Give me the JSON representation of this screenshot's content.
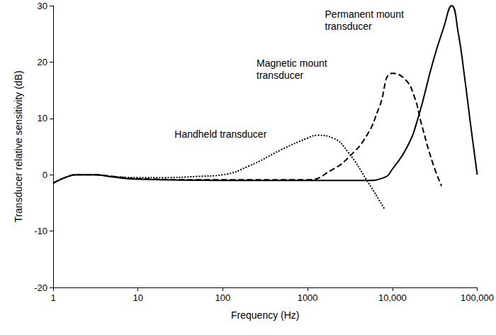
{
  "chart_data": {
    "type": "line",
    "x_label": "Frequency (Hz)",
    "y_label": "Transducer relative sensitivity (dB)",
    "log": "x",
    "grid": false,
    "xlim": [
      1,
      100000
    ],
    "xticks": [
      1,
      10,
      100,
      1000,
      {
        "value": 10000,
        "label": "10,000"
      },
      {
        "value": 100000,
        "label": "100,000"
      }
    ],
    "ylim": [
      -20,
      30
    ],
    "yticks": [
      -20,
      -10,
      0,
      10,
      20,
      30
    ],
    "series": [
      {
        "color": "#000000",
        "line_style": "dotted",
        "x": [
          1,
          1.5,
          2,
          3,
          5,
          10,
          20,
          50,
          100,
          200,
          500,
          1000,
          1300,
          2000,
          3000,
          5000,
          8000
        ],
        "values": [
          -1.5,
          -0.3,
          0,
          0,
          -0.3,
          -0.5,
          -0.5,
          -0.3,
          0,
          1.5,
          4.5,
          6.5,
          7,
          6.5,
          4,
          -1,
          -6
        ]
      },
      {
        "color": "#000000",
        "line_style": "dashed",
        "x": [
          1,
          1.5,
          2,
          3,
          5,
          10,
          100,
          1000,
          2000,
          3000,
          5000,
          7000,
          10000,
          14000,
          18000,
          22000,
          30000,
          38000
        ],
        "values": [
          -1.5,
          -0.3,
          0,
          0,
          -0.3,
          -0.7,
          -0.9,
          -0.9,
          1,
          3,
          7,
          12,
          18,
          17,
          14,
          9,
          2,
          -2
        ]
      },
      {
        "color": "#000000",
        "line_style": "solid",
        "x": [
          1,
          1.5,
          2,
          3,
          5,
          10,
          100,
          1000,
          5000,
          8000,
          10000,
          15000,
          20000,
          30000,
          40000,
          50000,
          60000,
          70000,
          85000,
          100000
        ],
        "values": [
          -1.5,
          -0.3,
          0,
          0,
          -0.4,
          -0.8,
          -1,
          -1,
          -1,
          -0.5,
          1,
          5,
          10,
          20,
          26,
          30,
          25,
          18,
          8,
          0
        ]
      }
    ],
    "annotations": [
      {
        "text": "Permanent mount\ntransducer",
        "x": 1600,
        "y": 29.5
      },
      {
        "text": "Magnetic mount\ntransducer",
        "x": 250,
        "y": 20.9
      },
      {
        "text": "Handheld transducer",
        "x": 27,
        "y": 8.3
      }
    ]
  }
}
